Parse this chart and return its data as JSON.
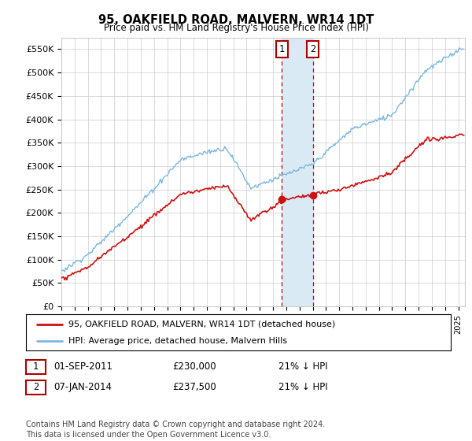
{
  "title": "95, OAKFIELD ROAD, MALVERN, WR14 1DT",
  "subtitle": "Price paid vs. HM Land Registry's House Price Index (HPI)",
  "ylabel_ticks": [
    "£0",
    "£50K",
    "£100K",
    "£150K",
    "£200K",
    "£250K",
    "£300K",
    "£350K",
    "£400K",
    "£450K",
    "£500K",
    "£550K"
  ],
  "ytick_values": [
    0,
    50000,
    100000,
    150000,
    200000,
    250000,
    300000,
    350000,
    400000,
    450000,
    500000,
    550000
  ],
  "ylim": [
    0,
    575000
  ],
  "legend_line1": "95, OAKFIELD ROAD, MALVERN, WR14 1DT (detached house)",
  "legend_line2": "HPI: Average price, detached house, Malvern Hills",
  "transaction1_date": "01-SEP-2011",
  "transaction1_price": "£230,000",
  "transaction1_pct": "21% ↓ HPI",
  "transaction1_value": 230000,
  "transaction1_x": 2011.667,
  "transaction2_date": "07-JAN-2014",
  "transaction2_price": "£237,500",
  "transaction2_pct": "21% ↓ HPI",
  "transaction2_value": 237500,
  "transaction2_x": 2014.0,
  "footer": "Contains HM Land Registry data © Crown copyright and database right 2024.\nThis data is licensed under the Open Government Licence v3.0.",
  "hpi_color": "#7ab8e0",
  "price_color": "#cc1111",
  "highlight_color": "#daeaf5",
  "dashed_line_color": "#cc0000",
  "background_color": "#ffffff",
  "grid_color": "#cccccc",
  "label1_edge_color": "#aa0000",
  "label2_edge_color": "#aa0000",
  "xstart": 1995,
  "xend": 2025.5
}
